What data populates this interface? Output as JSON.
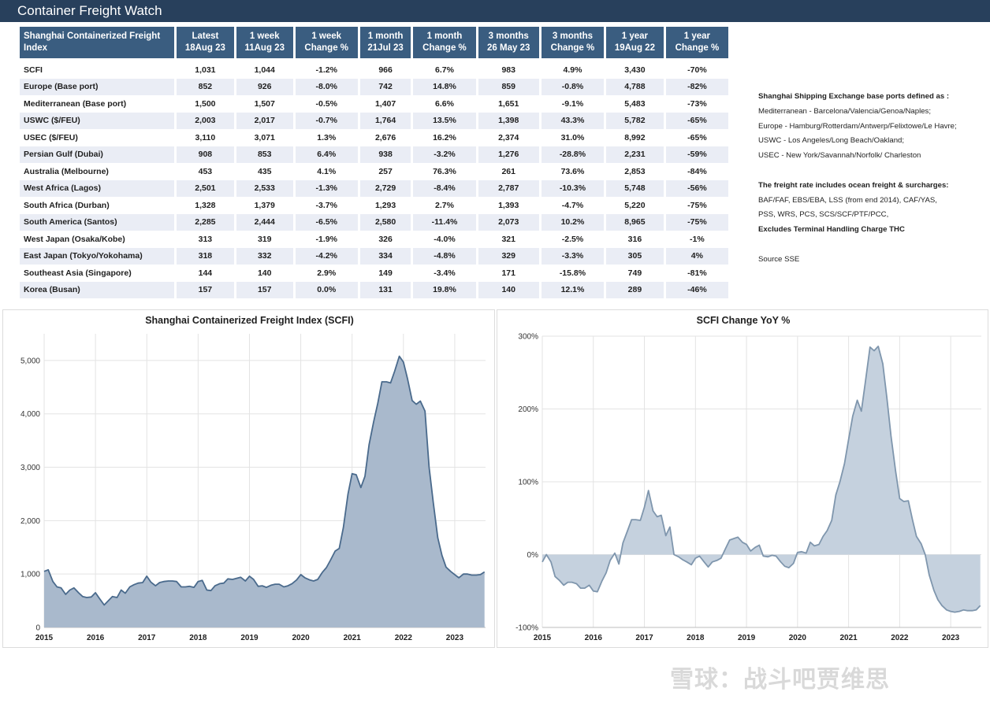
{
  "header": {
    "title": "Container Freight Watch"
  },
  "table": {
    "columns": [
      [
        "Shanghai Containerized Freight",
        "Index"
      ],
      [
        "Latest",
        "18Aug 23"
      ],
      [
        "1 week",
        "11Aug 23"
      ],
      [
        "1 week",
        "Change %"
      ],
      [
        "1 month",
        "21Jul 23"
      ],
      [
        "1 month",
        "Change %"
      ],
      [
        "3 months",
        "26 May 23"
      ],
      [
        "3 months",
        "Change %"
      ],
      [
        "1 year",
        "19Aug 22"
      ],
      [
        "1 year",
        "Change %"
      ]
    ],
    "rows": [
      [
        "SCFI",
        "1,031",
        "1,044",
        "-1.2%",
        "966",
        "6.7%",
        "983",
        "4.9%",
        "3,430",
        "-70%"
      ],
      [
        "Europe (Base port)",
        "852",
        "926",
        "-8.0%",
        "742",
        "14.8%",
        "859",
        "-0.8%",
        "4,788",
        "-82%"
      ],
      [
        "Mediterranean (Base port)",
        "1,500",
        "1,507",
        "-0.5%",
        "1,407",
        "6.6%",
        "1,651",
        "-9.1%",
        "5,483",
        "-73%"
      ],
      [
        "USWC ($/FEU)",
        "2,003",
        "2,017",
        "-0.7%",
        "1,764",
        "13.5%",
        "1,398",
        "43.3%",
        "5,782",
        "-65%"
      ],
      [
        "USEC ($/FEU)",
        "3,110",
        "3,071",
        "1.3%",
        "2,676",
        "16.2%",
        "2,374",
        "31.0%",
        "8,992",
        "-65%"
      ],
      [
        "Persian Gulf (Dubai)",
        "908",
        "853",
        "6.4%",
        "938",
        "-3.2%",
        "1,276",
        "-28.8%",
        "2,231",
        "-59%"
      ],
      [
        "Australia (Melbourne)",
        "453",
        "435",
        "4.1%",
        "257",
        "76.3%",
        "261",
        "73.6%",
        "2,853",
        "-84%"
      ],
      [
        "West Africa (Lagos)",
        "2,501",
        "2,533",
        "-1.3%",
        "2,729",
        "-8.4%",
        "2,787",
        "-10.3%",
        "5,748",
        "-56%"
      ],
      [
        "South Africa (Durban)",
        "1,328",
        "1,379",
        "-3.7%",
        "1,293",
        "2.7%",
        "1,393",
        "-4.7%",
        "5,220",
        "-75%"
      ],
      [
        "South America (Santos)",
        "2,285",
        "2,444",
        "-6.5%",
        "2,580",
        "-11.4%",
        "2,073",
        "10.2%",
        "8,965",
        "-75%"
      ],
      [
        "West Japan (Osaka/Kobe)",
        "313",
        "319",
        "-1.9%",
        "326",
        "-4.0%",
        "321",
        "-2.5%",
        "316",
        "-1%"
      ],
      [
        "East Japan (Tokyo/Yokohama)",
        "318",
        "332",
        "-4.2%",
        "334",
        "-4.8%",
        "329",
        "-3.3%",
        "305",
        "4%"
      ],
      [
        "Southeast Asia (Singapore)",
        "144",
        "140",
        "2.9%",
        "149",
        "-3.4%",
        "171",
        "-15.8%",
        "749",
        "-81%"
      ],
      [
        "Korea (Busan)",
        "157",
        "157",
        "0.0%",
        "131",
        "19.8%",
        "140",
        "12.1%",
        "289",
        "-46%"
      ]
    ]
  },
  "notes": {
    "ports_heading": "Shanghai Shipping Exchange base ports defined as :",
    "ports_lines": [
      "Mediterranean - Barcelona/Valencia/Genoa/Naples;",
      "Europe - Hamburg/Rotterdam/Antwerp/Felixtowe/Le Havre;",
      "USWC - Los Angeles/Long Beach/Oakland;",
      "USEC - New York/Savannah/Norfolk/ Charleston"
    ],
    "rate_heading": "The freight rate includes ocean freight & surcharges:",
    "rate_lines": [
      "BAF/FAF, EBS/EBA, LSS (from end 2014), CAF/YAS,",
      "PSS, WRS, PCS, SCS/SCF/PTF/PCC,"
    ],
    "rate_excludes": "Excludes Terminal Handling Charge THC",
    "source": "Source SSE"
  },
  "watermark": "雪球：战斗吧贾维思",
  "colors": {
    "header_bg": "#28405c",
    "table_header_bg": "#3a5d80",
    "row_stripe": "#eaedf5",
    "scfi_fill": "#a9b9cc",
    "scfi_line": "#4a6a8c",
    "yoy_fill": "#c5d1de",
    "yoy_line": "#7f96ad"
  },
  "chart_data": [
    {
      "type": "area",
      "title": "Shanghai Containerized Freight Index (SCFI)",
      "xlabel": "",
      "ylabel": "",
      "xlim": [
        2015.0,
        2023.6
      ],
      "ylim": [
        0,
        5500
      ],
      "x_ticks": [
        2015,
        2016,
        2017,
        2018,
        2019,
        2020,
        2021,
        2022,
        2023
      ],
      "y_ticks": [
        0,
        1000,
        2000,
        3000,
        4000,
        5000
      ],
      "y_tick_labels": [
        "0",
        "1,000",
        "2,000",
        "3,000",
        "4,000",
        "5,000"
      ],
      "grid": true,
      "series": [
        {
          "x": [
            2015.0,
            2015.08,
            2015.17,
            2015.25,
            2015.33,
            2015.42,
            2015.5,
            2015.58,
            2015.67,
            2015.75,
            2015.83,
            2015.92,
            2016.0,
            2016.08,
            2016.17,
            2016.25,
            2016.33,
            2016.42,
            2016.5,
            2016.58,
            2016.67,
            2016.75,
            2016.83,
            2016.92,
            2017.0,
            2017.08,
            2017.17,
            2017.25,
            2017.33,
            2017.42,
            2017.5,
            2017.58,
            2017.67,
            2017.75,
            2017.83,
            2017.92,
            2018.0,
            2018.08,
            2018.17,
            2018.25,
            2018.33,
            2018.42,
            2018.5,
            2018.58,
            2018.67,
            2018.75,
            2018.83,
            2018.92,
            2019.0,
            2019.08,
            2019.17,
            2019.25,
            2019.33,
            2019.42,
            2019.5,
            2019.58,
            2019.67,
            2019.75,
            2019.83,
            2019.92,
            2020.0,
            2020.08,
            2020.17,
            2020.25,
            2020.33,
            2020.42,
            2020.5,
            2020.58,
            2020.67,
            2020.75,
            2020.83,
            2020.92,
            2021.0,
            2021.08,
            2021.17,
            2021.25,
            2021.33,
            2021.42,
            2021.5,
            2021.58,
            2021.67,
            2021.75,
            2021.83,
            2021.92,
            2022.0,
            2022.08,
            2022.17,
            2022.25,
            2022.33,
            2022.42,
            2022.5,
            2022.58,
            2022.67,
            2022.75,
            2022.83,
            2022.92,
            2023.0,
            2023.08,
            2023.17,
            2023.25,
            2023.33,
            2023.42,
            2023.5,
            2023.58
          ],
          "values": [
            1050,
            1080,
            860,
            760,
            740,
            620,
            700,
            740,
            650,
            580,
            560,
            570,
            650,
            540,
            420,
            500,
            580,
            560,
            700,
            640,
            760,
            800,
            830,
            840,
            960,
            850,
            780,
            840,
            860,
            870,
            870,
            860,
            760,
            760,
            770,
            750,
            860,
            880,
            700,
            690,
            780,
            820,
            830,
            910,
            900,
            920,
            940,
            870,
            960,
            900,
            770,
            780,
            750,
            790,
            810,
            810,
            760,
            780,
            820,
            890,
            990,
            930,
            890,
            870,
            900,
            1030,
            1120,
            1260,
            1430,
            1480,
            1870,
            2500,
            2880,
            2860,
            2620,
            2830,
            3420,
            3850,
            4200,
            4600,
            4600,
            4580,
            4800,
            5080,
            4970,
            4660,
            4250,
            4180,
            4240,
            4050,
            3000,
            2350,
            1680,
            1350,
            1130,
            1050,
            990,
            930,
            1000,
            1000,
            980,
            980,
            990,
            1040
          ]
        }
      ]
    },
    {
      "type": "area",
      "title": "SCFI Change YoY %",
      "xlabel": "",
      "ylabel": "",
      "xlim": [
        2015.0,
        2023.6
      ],
      "ylim": [
        -100,
        300
      ],
      "x_ticks": [
        2015,
        2016,
        2017,
        2018,
        2019,
        2020,
        2021,
        2022,
        2023
      ],
      "y_ticks": [
        -100,
        0,
        100,
        200,
        300
      ],
      "y_tick_labels": [
        "-100%",
        "0%",
        "100%",
        "200%",
        "300%"
      ],
      "grid": true,
      "series": [
        {
          "x": [
            2015.0,
            2015.08,
            2015.17,
            2015.25,
            2015.33,
            2015.42,
            2015.5,
            2015.58,
            2015.67,
            2015.75,
            2015.83,
            2015.92,
            2016.0,
            2016.08,
            2016.17,
            2016.25,
            2016.33,
            2016.42,
            2016.5,
            2016.58,
            2016.67,
            2016.75,
            2016.83,
            2016.92,
            2017.0,
            2017.08,
            2017.17,
            2017.25,
            2017.33,
            2017.42,
            2017.5,
            2017.58,
            2017.67,
            2017.75,
            2017.83,
            2017.92,
            2018.0,
            2018.08,
            2018.17,
            2018.25,
            2018.33,
            2018.42,
            2018.5,
            2018.58,
            2018.67,
            2018.75,
            2018.83,
            2018.92,
            2019.0,
            2019.08,
            2019.17,
            2019.25,
            2019.33,
            2019.42,
            2019.5,
            2019.58,
            2019.67,
            2019.75,
            2019.83,
            2019.92,
            2020.0,
            2020.08,
            2020.17,
            2020.25,
            2020.33,
            2020.42,
            2020.5,
            2020.58,
            2020.67,
            2020.75,
            2020.83,
            2020.92,
            2021.0,
            2021.08,
            2021.17,
            2021.25,
            2021.33,
            2021.42,
            2021.5,
            2021.58,
            2021.67,
            2021.75,
            2021.83,
            2021.92,
            2022.0,
            2022.08,
            2022.17,
            2022.25,
            2022.33,
            2022.42,
            2022.5,
            2022.58,
            2022.67,
            2022.75,
            2022.83,
            2022.92,
            2023.0,
            2023.08,
            2023.17,
            2023.25,
            2023.33,
            2023.42,
            2023.5,
            2023.58
          ],
          "values": [
            -10,
            0,
            -10,
            -30,
            -35,
            -42,
            -38,
            -38,
            -40,
            -46,
            -46,
            -42,
            -50,
            -51,
            -36,
            -25,
            -8,
            2,
            -13,
            16,
            33,
            48,
            48,
            47,
            65,
            88,
            60,
            52,
            54,
            26,
            38,
            0,
            -3,
            -7,
            -10,
            -14,
            -5,
            -2,
            -10,
            -17,
            -10,
            -8,
            -5,
            7,
            20,
            22,
            24,
            17,
            14,
            5,
            10,
            13,
            -2,
            -3,
            -1,
            -2,
            -10,
            -16,
            -18,
            -12,
            3,
            4,
            2,
            17,
            12,
            14,
            25,
            33,
            47,
            82,
            100,
            125,
            158,
            190,
            212,
            197,
            238,
            285,
            280,
            286,
            262,
            215,
            163,
            115,
            77,
            73,
            74,
            48,
            25,
            15,
            0,
            -28,
            -49,
            -62,
            -70,
            -76,
            -78,
            -79,
            -78,
            -76,
            -77,
            -77,
            -76,
            -70
          ]
        }
      ]
    }
  ]
}
